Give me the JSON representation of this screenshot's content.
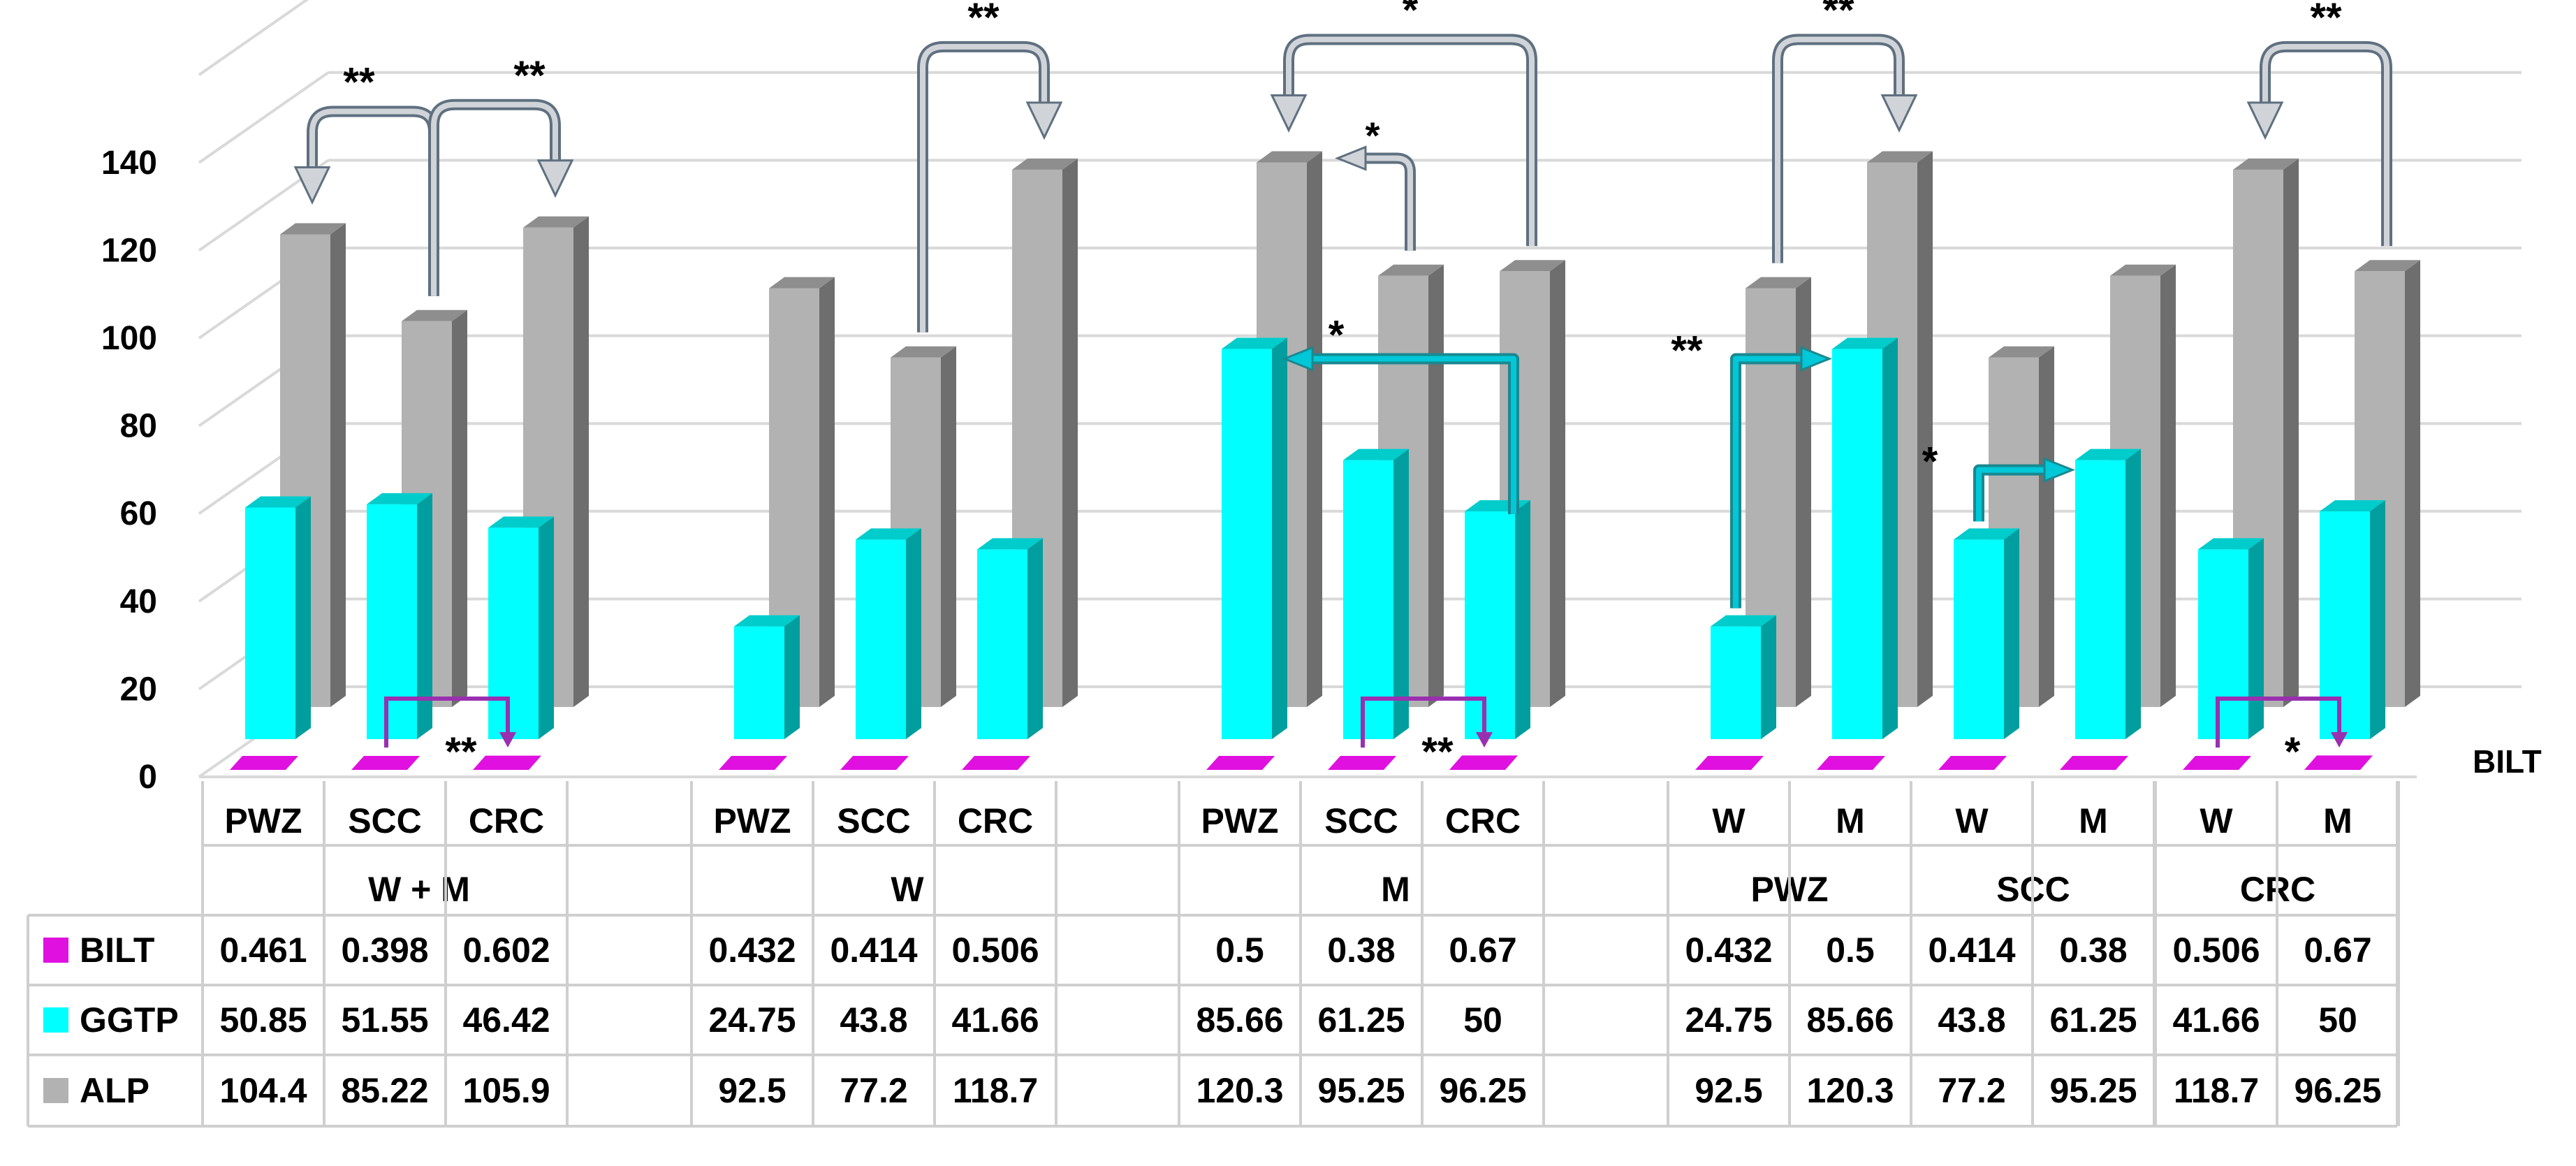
{
  "chart_data": {
    "type": "bar",
    "y_ticks": [
      "0",
      "20",
      "40",
      "60",
      "80",
      "100",
      "120",
      "140"
    ],
    "ylim": [
      0,
      160
    ],
    "grid": true,
    "depth_label": "BILT",
    "colors": {
      "BILT": "#e010e0",
      "GGTP": "#00ffff",
      "ALP": "#b2b2b2",
      "arrow_gray": "#5f7080",
      "arrow_cyan": "#00c8d8",
      "arrow_magenta": "#9a2fb0"
    },
    "series": [
      {
        "name": "BILT",
        "values": [
          0.461,
          0.398,
          0.602,
          0.432,
          0.414,
          0.506,
          0.5,
          0.38,
          0.67,
          0.432,
          0.5,
          0.414,
          0.38,
          0.506,
          0.67
        ]
      },
      {
        "name": "GGTP",
        "values": [
          50.85,
          51.55,
          46.42,
          24.75,
          43.8,
          41.66,
          85.66,
          61.25,
          50,
          24.75,
          85.66,
          43.8,
          61.25,
          41.66,
          50
        ]
      },
      {
        "name": "ALP",
        "values": [
          104.4,
          85.22,
          105.9,
          92.5,
          77.2,
          118.7,
          120.3,
          95.25,
          96.25,
          92.5,
          120.3,
          77.2,
          95.25,
          118.7,
          96.25
        ]
      }
    ],
    "groups": [
      {
        "label": "W + M",
        "categories": [
          "PWZ",
          "SCC",
          "CRC"
        ]
      },
      {
        "label": "W",
        "categories": [
          "PWZ",
          "SCC",
          "CRC"
        ]
      },
      {
        "label": "M",
        "categories": [
          "PWZ",
          "SCC",
          "CRC"
        ]
      },
      {
        "label": "PWZ",
        "categories": [
          "W",
          "M"
        ]
      },
      {
        "label": "SCC",
        "categories": [
          "W",
          "M"
        ]
      },
      {
        "label": "CRC",
        "categories": [
          "W",
          "M"
        ]
      }
    ],
    "table": {
      "rows": [
        {
          "name": "BILT",
          "cells": [
            [
              "0.461",
              "0.398",
              "0.602"
            ],
            [
              "0.432",
              "0.414",
              "0.506"
            ],
            [
              "0.5",
              "0.38",
              "0.67"
            ],
            [
              "0.432",
              "0.5"
            ],
            [
              "0.414",
              "0.38"
            ],
            [
              "0.506",
              "0.67"
            ]
          ]
        },
        {
          "name": "GGTP",
          "cells": [
            [
              "50.85",
              "51.55",
              "46.42"
            ],
            [
              "24.75",
              "43.8",
              "41.66"
            ],
            [
              "85.66",
              "61.25",
              "50"
            ],
            [
              "24.75",
              "85.66"
            ],
            [
              "43.8",
              "61.25"
            ],
            [
              "41.66",
              "50"
            ]
          ]
        },
        {
          "name": "ALP",
          "cells": [
            [
              "104.4",
              "85.22",
              "105.9"
            ],
            [
              "92.5",
              "77.2",
              "118.7"
            ],
            [
              "120.3",
              "95.25",
              "96.25"
            ],
            [
              "92.5",
              "120.3"
            ],
            [
              "77.2",
              "95.25"
            ],
            [
              "118.7",
              "96.25"
            ]
          ]
        }
      ]
    },
    "annotations": [
      {
        "series": "ALP",
        "from": 1,
        "to": 0,
        "label": "**"
      },
      {
        "series": "ALP",
        "from": 1,
        "to": 2,
        "label": "**"
      },
      {
        "series": "ALP",
        "from": 4,
        "to": 5,
        "label": "**"
      },
      {
        "series": "ALP",
        "from": 8,
        "to": 6,
        "label": "*"
      },
      {
        "series": "ALP",
        "from": 7,
        "to": 6,
        "label": "*"
      },
      {
        "series": "ALP",
        "from": 9,
        "to": 10,
        "label": "**"
      },
      {
        "series": "ALP",
        "from": 14,
        "to": 13,
        "label": "**"
      },
      {
        "series": "GGTP",
        "from": 8,
        "to": 6,
        "label": "*"
      },
      {
        "series": "GGTP",
        "from": 9,
        "to": 10,
        "label": "**"
      },
      {
        "series": "GGTP",
        "from": 11,
        "to": 12,
        "label": "*"
      },
      {
        "series": "BILT",
        "from": 1,
        "to": 2,
        "label": "**"
      },
      {
        "series": "BILT",
        "from": 7,
        "to": 8,
        "label": "**"
      },
      {
        "series": "BILT",
        "from": 13,
        "to": 14,
        "label": "*"
      }
    ]
  }
}
